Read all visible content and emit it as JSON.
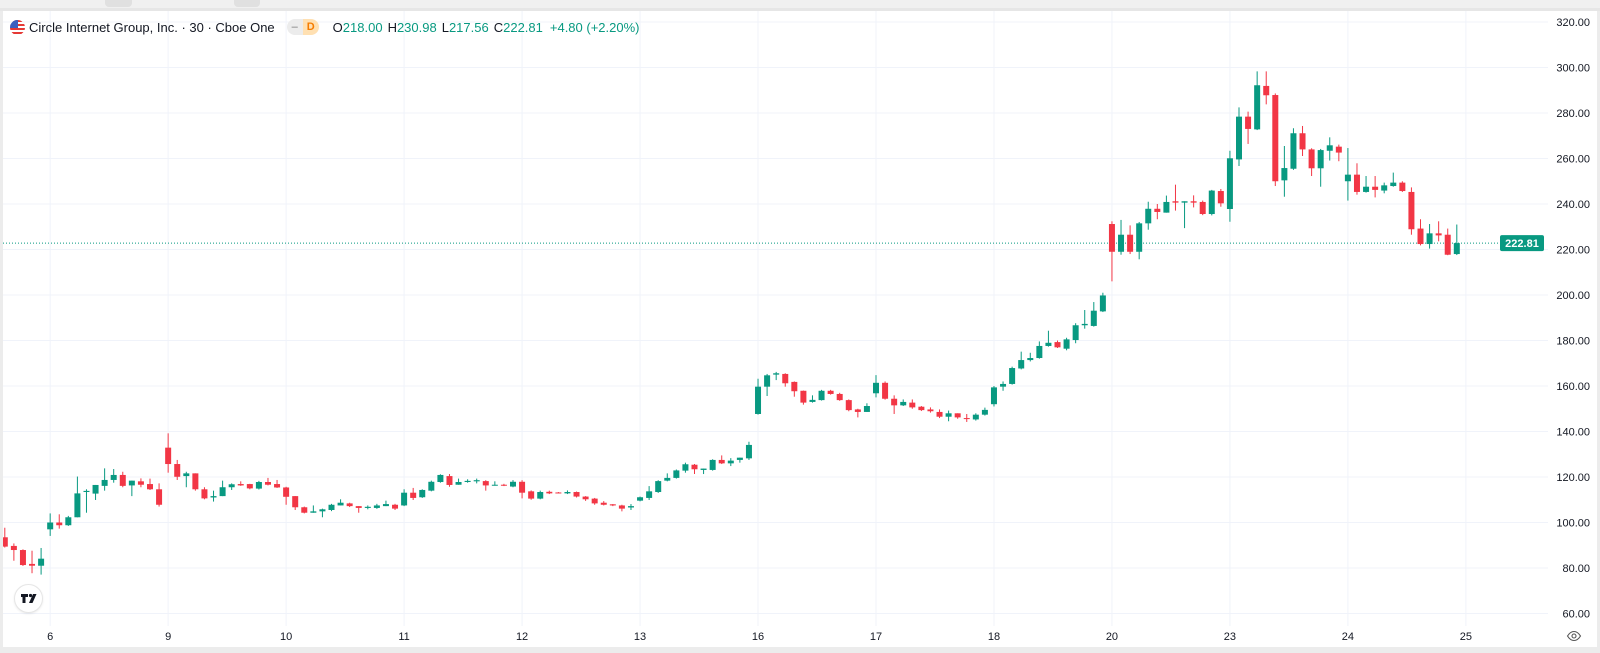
{
  "header": {
    "symbol_title": "Circle Internet Group, Inc. · 30 · Cboe One",
    "flag_icon": "us-flag-icon",
    "market_status_icon": "minus-icon",
    "delay_badge": "D",
    "ohlc": {
      "o_label": "O",
      "o_value": "218.00",
      "h_label": "H",
      "h_value": "230.98",
      "l_label": "L",
      "l_value": "217.56",
      "c_label": "C",
      "c_value": "222.81",
      "change": "+4.80 (+2.20%)"
    }
  },
  "price_axis": {
    "current_price_label": "222.81"
  },
  "colors": {
    "up": "#089981",
    "down": "#F23645",
    "grid": "#f0f3fa",
    "text": "#131722"
  },
  "chart_data": {
    "type": "candlestick",
    "title": "",
    "xlabel": "",
    "ylabel": "",
    "ylim": [
      60,
      320
    ],
    "y_ticks": [
      "60.00",
      "80.00",
      "100.00",
      "120.00",
      "140.00",
      "160.00",
      "180.00",
      "200.00",
      "220.00",
      "240.00",
      "260.00",
      "280.00",
      "300.00",
      "320.00"
    ],
    "x_ticks": [
      {
        "label": "6",
        "bar": 5
      },
      {
        "label": "9",
        "bar": 18
      },
      {
        "label": "10",
        "bar": 31
      },
      {
        "label": "11",
        "bar": 44
      },
      {
        "label": "12",
        "bar": 57
      },
      {
        "label": "13",
        "bar": 70
      },
      {
        "label": "16",
        "bar": 83
      },
      {
        "label": "17",
        "bar": 96
      },
      {
        "label": "18",
        "bar": 109
      },
      {
        "label": "20",
        "bar": 122
      },
      {
        "label": "23",
        "bar": 135
      },
      {
        "label": "24",
        "bar": 148
      },
      {
        "label": "25",
        "bar": 161
      }
    ],
    "grid": true,
    "last_price": 222.81,
    "ohlc_fields": [
      "open",
      "high",
      "low",
      "close"
    ],
    "candles": [
      [
        93.5,
        97.7,
        89,
        89.4
      ],
      [
        89.7,
        90.8,
        83.2,
        87.9
      ],
      [
        87.9,
        88.2,
        80.9,
        81.3
      ],
      [
        81.8,
        87.6,
        77.7,
        81.0
      ],
      [
        81.0,
        88.8,
        77.1,
        84.1
      ],
      [
        97.0,
        104,
        94.1,
        100.0
      ],
      [
        100,
        103.6,
        97.3,
        98.8
      ],
      [
        98.8,
        102.9,
        98.5,
        102.3
      ],
      [
        102.3,
        120.2,
        102.3,
        112.8
      ],
      [
        113.4,
        114.6,
        104.3,
        113.9
      ],
      [
        112.7,
        116.5,
        109.9,
        116.5
      ],
      [
        116.1,
        123.8,
        114,
        118.7
      ],
      [
        118.7,
        123.5,
        117.5,
        120.9
      ],
      [
        120.9,
        122.3,
        115.5,
        116.1
      ],
      [
        116.3,
        118.4,
        111.6,
        118.4
      ],
      [
        118.1,
        119.4,
        115.5,
        116.6
      ],
      [
        116.9,
        119.3,
        114.3,
        114.6
      ],
      [
        114.6,
        117.2,
        107,
        107.8
      ],
      [
        132.9,
        139.2,
        121.9,
        125.7
      ],
      [
        125.7,
        127.5,
        118.7,
        120.1
      ],
      [
        120.4,
        122.3,
        115.5,
        121.6
      ],
      [
        121.6,
        121.6,
        114,
        114.6
      ],
      [
        114.6,
        115.5,
        110.2,
        110.6
      ],
      [
        111,
        114,
        109.2,
        111.6
      ],
      [
        111.6,
        118.4,
        111.6,
        115.5
      ],
      [
        115.5,
        117.2,
        114.3,
        116.8
      ],
      [
        116.9,
        118.1,
        116.1,
        116.3
      ],
      [
        116.9,
        117,
        114.6,
        115.0
      ],
      [
        114.9,
        118.3,
        114.5,
        117.8
      ],
      [
        117.8,
        119.6,
        116.3,
        116.6
      ],
      [
        116.9,
        118.7,
        115.2,
        115.4
      ],
      [
        115.4,
        115.7,
        107.8,
        111.3
      ],
      [
        111.6,
        111.6,
        105.5,
        106.7
      ],
      [
        106.7,
        107,
        104,
        104.3
      ],
      [
        104.3,
        107.5,
        104.3,
        104.9
      ],
      [
        104.9,
        106.1,
        102.3,
        105.8
      ],
      [
        105.5,
        108.2,
        105,
        107.8
      ],
      [
        107.5,
        110.2,
        107.5,
        108.7
      ],
      [
        108.4,
        108.7,
        106.8,
        107.2
      ],
      [
        107.2,
        107.2,
        104.3,
        106.4
      ],
      [
        106.4,
        107.5,
        105.8,
        106.9
      ],
      [
        106.4,
        108.2,
        106,
        107.5
      ],
      [
        107.2,
        109.6,
        107.2,
        108.1
      ],
      [
        107.8,
        108.2,
        105.5,
        106.1
      ],
      [
        107.5,
        114.6,
        107.2,
        113.1
      ],
      [
        113.1,
        115.2,
        109.9,
        110.8
      ],
      [
        111.1,
        114.6,
        110.8,
        114.3
      ],
      [
        114,
        118.4,
        113.7,
        117.9
      ],
      [
        117.8,
        121.2,
        117.5,
        120.9
      ],
      [
        120.4,
        121.3,
        115.7,
        116.5
      ],
      [
        116.6,
        119.3,
        116.6,
        117.8
      ],
      [
        117.8,
        119,
        117.5,
        118.3
      ],
      [
        118.1,
        119.3,
        117.2,
        118.6
      ],
      [
        118.2,
        118.6,
        114,
        116.3
      ],
      [
        116.2,
        118.1,
        116.2,
        116.6
      ],
      [
        116.6,
        117,
        116,
        116.2
      ],
      [
        115.8,
        118.6,
        115.5,
        117.9
      ],
      [
        117.9,
        118.6,
        110.6,
        113.1
      ],
      [
        113.7,
        114.1,
        110,
        110.5
      ],
      [
        110.5,
        114,
        110.2,
        113.4
      ],
      [
        113.5,
        114,
        112.5,
        112.8
      ],
      [
        113.2,
        113.4,
        112.8,
        113.0
      ],
      [
        112.8,
        114.1,
        112.5,
        113.4
      ],
      [
        113.4,
        113.6,
        111,
        111.4
      ],
      [
        111.4,
        111.6,
        109.5,
        110.2
      ],
      [
        110.5,
        110.8,
        107.8,
        108.4
      ],
      [
        108.7,
        109.4,
        107.5,
        107.8
      ],
      [
        108,
        108.1,
        107.2,
        107.5
      ],
      [
        107.5,
        107.8,
        104.9,
        106.1
      ],
      [
        106.6,
        108.1,
        105.5,
        107.2
      ],
      [
        109.6,
        111.4,
        109.3,
        111.1
      ],
      [
        110.8,
        116,
        109.9,
        113.7
      ],
      [
        113.4,
        118.6,
        113,
        118.2
      ],
      [
        118.4,
        121.6,
        118.1,
        119.6
      ],
      [
        119.6,
        123.3,
        119.3,
        122.9
      ],
      [
        122.8,
        126.3,
        121.9,
        125.6
      ],
      [
        125.4,
        125.7,
        121.3,
        123.4
      ],
      [
        123.1,
        123.7,
        121.3,
        123.7
      ],
      [
        123.1,
        127.8,
        122.8,
        127.5
      ],
      [
        127.5,
        129.5,
        125.7,
        126
      ],
      [
        126,
        128.3,
        124.8,
        127.2
      ],
      [
        127.5,
        128.5,
        126.3,
        128.5
      ],
      [
        128.2,
        135.5,
        127.5,
        134.1
      ],
      [
        147.7,
        163.2,
        147.4,
        159.7
      ],
      [
        159.7,
        165.3,
        155.6,
        164.7
      ],
      [
        165,
        166.2,
        162.6,
        165.6
      ],
      [
        165.3,
        165.6,
        159.7,
        161.2
      ],
      [
        161.8,
        162,
        155.3,
        157.7
      ],
      [
        157.9,
        158,
        151.8,
        152.7
      ],
      [
        153,
        155.9,
        152.7,
        153.9
      ],
      [
        153.8,
        158.3,
        153.6,
        157.9
      ],
      [
        157.9,
        158.3,
        156.2,
        156.5
      ],
      [
        156.5,
        157,
        153.5,
        153.8
      ],
      [
        153.8,
        154.1,
        148.9,
        149.4
      ],
      [
        149.7,
        150,
        146.2,
        148.6
      ],
      [
        148.6,
        152.4,
        148.6,
        151.2
      ],
      [
        156.8,
        164.8,
        155,
        161.4
      ],
      [
        161.4,
        162,
        154,
        154.4
      ],
      [
        154.4,
        155.9,
        147.7,
        151.5
      ],
      [
        151.5,
        154.1,
        151.2,
        153
      ],
      [
        152.7,
        154.1,
        150,
        150.6
      ],
      [
        150.9,
        151.2,
        149,
        149.4
      ],
      [
        149.7,
        150.6,
        148.3,
        148.9
      ],
      [
        148.6,
        149.7,
        145.9,
        146.5
      ],
      [
        146.5,
        149.2,
        144.5,
        148
      ],
      [
        148,
        148,
        145.6,
        146.2
      ],
      [
        145.9,
        147.7,
        144.2,
        145.6
      ],
      [
        145.3,
        148,
        144.8,
        147.4
      ],
      [
        147.4,
        150.5,
        147,
        149.5
      ],
      [
        152,
        160,
        151,
        159.4
      ],
      [
        159.7,
        162,
        157.9,
        160.9
      ],
      [
        160.9,
        168.5,
        160.6,
        167.9
      ],
      [
        167.7,
        175.1,
        167.3,
        171.4
      ],
      [
        171.4,
        174.6,
        170.8,
        172.3
      ],
      [
        172.3,
        179.6,
        172,
        177.6
      ],
      [
        177.6,
        184.3,
        177.3,
        179
      ],
      [
        179.3,
        180,
        176.7,
        177
      ],
      [
        176.4,
        181.2,
        175.7,
        180.5
      ],
      [
        180.2,
        187.6,
        178.8,
        186.7
      ],
      [
        186.7,
        193.4,
        185.2,
        187.3
      ],
      [
        186.4,
        196.9,
        186.1,
        193.1
      ],
      [
        192.8,
        201,
        192.5,
        199.8
      ],
      [
        231.2,
        232.4,
        206,
        219
      ],
      [
        219,
        233,
        217.7,
        226.5
      ],
      [
        226.5,
        230.6,
        218,
        219
      ],
      [
        219,
        232.1,
        215.7,
        231.5
      ],
      [
        231.5,
        241,
        228.7,
        237.9
      ],
      [
        237.9,
        240,
        233.3,
        236.5
      ],
      [
        236.2,
        243.7,
        236.2,
        240.9
      ],
      [
        241.2,
        248.5,
        237.1,
        240.6
      ],
      [
        240.6,
        241.2,
        229.4,
        241.2
      ],
      [
        241.2,
        243.8,
        238.5,
        240.6
      ],
      [
        240.9,
        241.5,
        235.1,
        235.6
      ],
      [
        235.6,
        246.2,
        235,
        245.9
      ],
      [
        245.7,
        246.6,
        238.8,
        240.3
      ],
      [
        237.8,
        263.4,
        232.2,
        260.1
      ],
      [
        259.6,
        282.5,
        256.7,
        278.4
      ],
      [
        278.4,
        280.6,
        266.4,
        273
      ],
      [
        272.8,
        298.3,
        272.5,
        292.2
      ],
      [
        291.9,
        298.3,
        283.8,
        287.8
      ],
      [
        287.9,
        288.6,
        247.9,
        250
      ],
      [
        250.4,
        265.5,
        243.2,
        255.8
      ],
      [
        255.5,
        273.3,
        255,
        271.1
      ],
      [
        271.1,
        274.3,
        261.1,
        264
      ],
      [
        264,
        264.5,
        252.3,
        255.7
      ],
      [
        255.7,
        264.2,
        247.6,
        263.7
      ],
      [
        263.4,
        269.3,
        259.1,
        265.8
      ],
      [
        265.2,
        266.1,
        258.8,
        262.6
      ],
      [
        250,
        264.6,
        241.5,
        252.9
      ],
      [
        252.9,
        257.9,
        244.1,
        245.3
      ],
      [
        245.3,
        252.3,
        245,
        247.6
      ],
      [
        247.6,
        252.3,
        242.9,
        246.2
      ],
      [
        245.9,
        249.4,
        244.7,
        248.2
      ],
      [
        247.9,
        253.8,
        247.6,
        249.4
      ],
      [
        249.4,
        250,
        245.3,
        245.7
      ],
      [
        245.3,
        247.3,
        226.5,
        228.9
      ],
      [
        229.2,
        233.3,
        221.8,
        222.4
      ],
      [
        222.4,
        231.2,
        220.4,
        227.1
      ],
      [
        227.1,
        232.4,
        223.6,
        226.2
      ],
      [
        226.5,
        229.2,
        217.5,
        217.7
      ],
      [
        218.0,
        230.98,
        217.56,
        222.81
      ]
    ]
  }
}
